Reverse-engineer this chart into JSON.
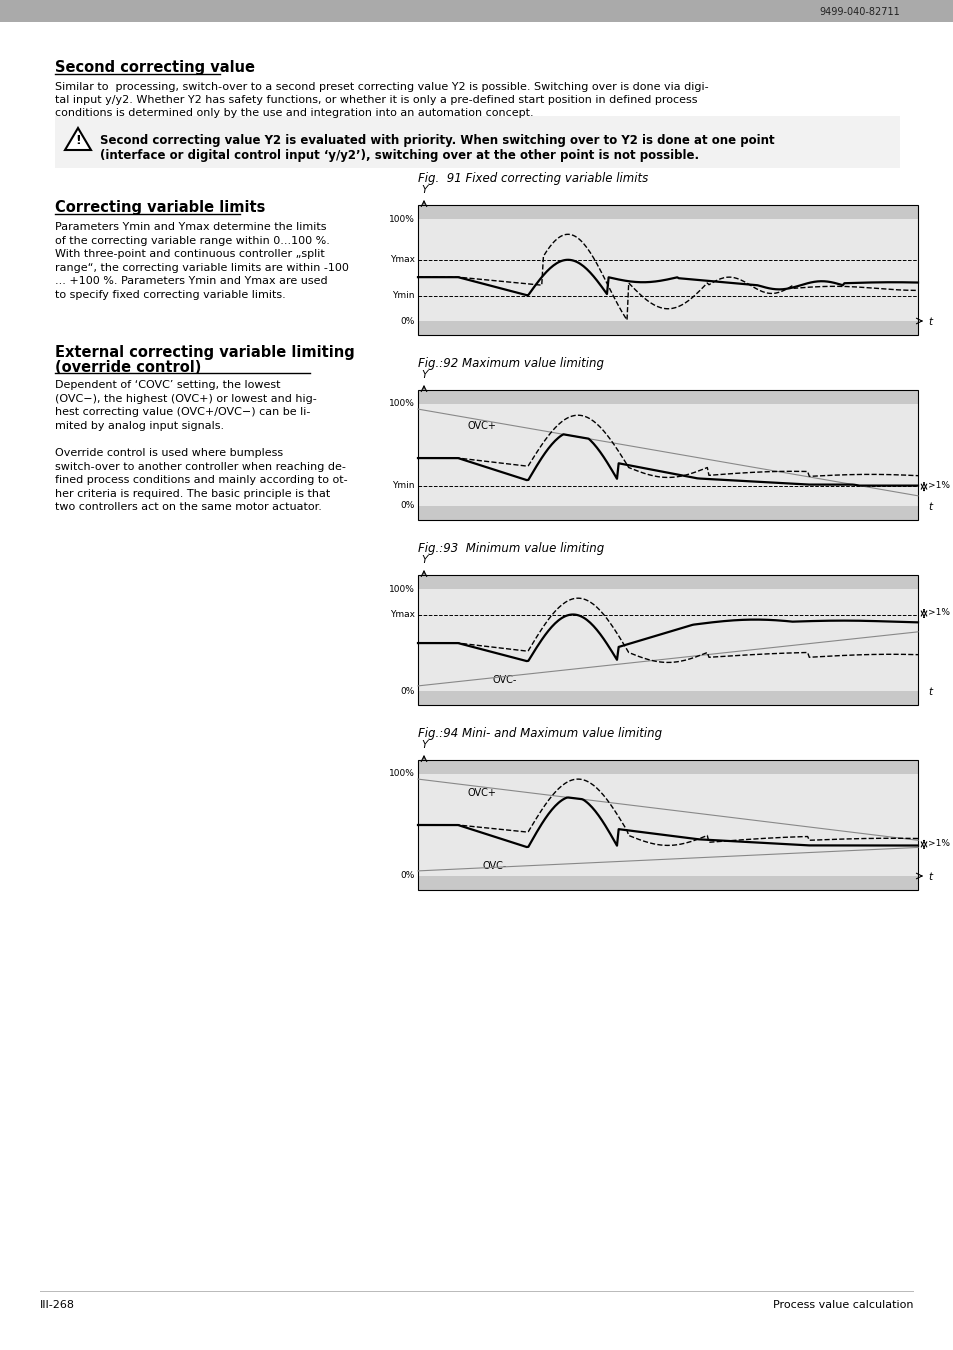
{
  "page_number": "III-268",
  "page_right_text": "Process value calculation",
  "header_code": "9499-040-82711",
  "header_bar_color": "#aaaaaa",
  "footer_bar_color": "#bbbbbb",
  "bg_color": "#ffffff",
  "section1_title": "Second correcting value",
  "section1_body_line1": "Similar to  processing, switch-over to a second preset correcting value Y2 is possible. Switching over is done via digi-",
  "section1_body_line2": "tal input y/y2. Whether Y2 has safety functions, or whether it is only a pre-defined start position in defined process",
  "section1_body_line3": "conditions is determined only by the use and integration into an automation concept.",
  "warning_line1": "Second correcting value Y2 is evaluated with priority. When switching over to Y2 is done at one point",
  "warning_line2": "(interface or digital control input ‘y/y2’), switching over at the other point is not possible.",
  "section2_title": "Correcting variable limits",
  "section2_body": "Parameters Ymin and Ymax determine the limits\nof the correcting variable range within 0...100 %.\nWith three-point and continuous controller „split\nrange“, the correcting variable limits are within -100\n... +100 %. Parameters Ymin and Ymax are used\nto specify fixed correcting variable limits.",
  "section3_title_line1": "External correcting variable limiting",
  "section3_title_line2": "(override control)",
  "section3_body": "Dependent of ‘COVC’ setting, the lowest\n(OVC−), the highest (OVC+) or lowest and hig-\nhest correcting value (OVC+/OVC−) can be li-\nmited by analog input signals.\n\nOverride control is used where bumpless\nswitch-over to another controller when reaching de-\nfined process conditions and mainly according to ot-\nher criteria is required. The basic principle is that\ntwo controllers act on the same motor actuator.",
  "fig91_title": "Fig.  91 Fixed correcting variable limits",
  "fig92_title": "Fig.:92 Maximum value limiting",
  "fig93_title": "Fig.:93  Minimum value limiting",
  "fig94_title": "Fig.:94 Mini- and Maximum value limiting",
  "chart_gray_band": "#c8c8c8",
  "chart_inner_bg": "#e8e8e8",
  "ovc_line_color": "#888888"
}
